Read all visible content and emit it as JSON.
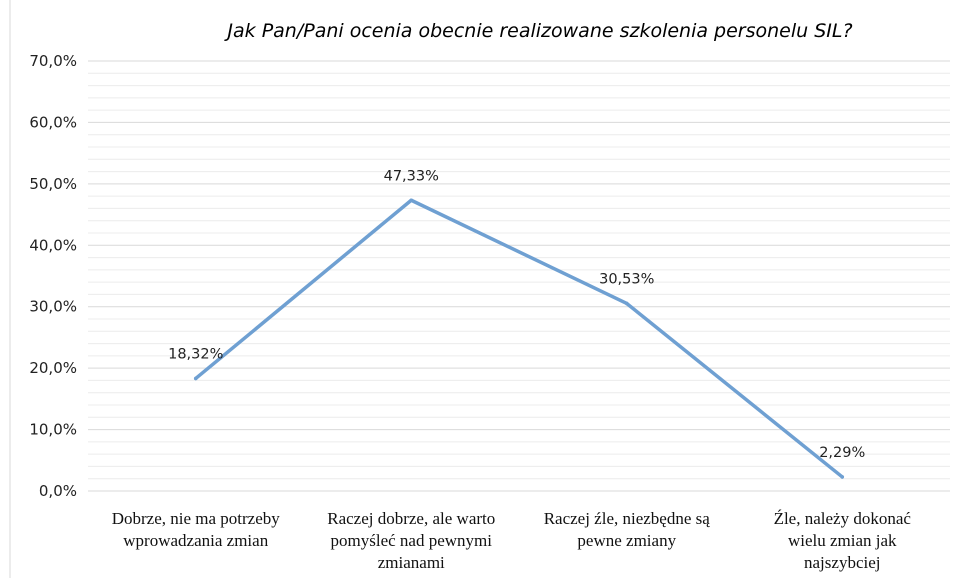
{
  "chart_data": {
    "type": "line",
    "title": "Jak Pan/Pani ocenia obecnie realizowane szkolenia personelu SIL?",
    "categories": [
      [
        "Dobrze, nie ma potrzeby",
        "wprowadzania zmian"
      ],
      [
        "Raczej dobrze, ale warto",
        "pomyśleć nad pewnymi",
        "zmianami"
      ],
      [
        "Raczej źle, niezbędne są",
        "pewne zmiany"
      ],
      [
        "Źle, należy dokonać",
        "wielu zmian jak",
        "najszybciej"
      ]
    ],
    "values": [
      18.32,
      47.33,
      30.53,
      2.29
    ],
    "data_labels": [
      "18,32%",
      "47,33%",
      "30,53%",
      "2,29%"
    ],
    "y_ticks": [
      "0,0%",
      "10,0%",
      "20,0%",
      "30,0%",
      "40,0%",
      "50,0%",
      "60,0%",
      "70,0%"
    ],
    "ylim": [
      0,
      70
    ],
    "minor_gridlines": true,
    "legend": "none",
    "line_color": "#6fa0d2",
    "grid_color": "#d9d9d9"
  }
}
